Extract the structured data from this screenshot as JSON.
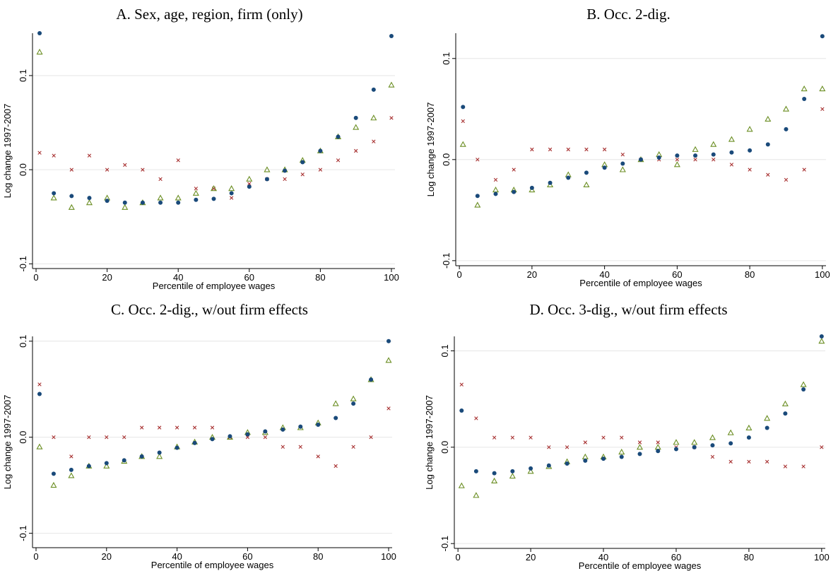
{
  "colors": {
    "dot": "#1a4a7a",
    "triangle": "#6b8e23",
    "cross": "#a83232",
    "grid": "#e6e6e6",
    "axis": "#000000"
  },
  "panels": [
    {
      "id": "A",
      "title": "A. Sex, age, region, firm (only)",
      "xlabel": "Percentile of employee wages",
      "ylabel": "Log change 1997-2007",
      "yticks": [
        {
          "v": -0.1,
          "label": "-0.1"
        },
        {
          "v": 0.0,
          "label": "0.0"
        },
        {
          "v": 0.1,
          "label": "0.1"
        }
      ],
      "xticks": [
        0,
        20,
        40,
        60,
        80,
        100
      ]
    },
    {
      "id": "B",
      "title": "B. Occ. 2-dig.",
      "xlabel": "Percentile of employee wages",
      "ylabel": "Log change 1997-2007",
      "yticks": [
        {
          "v": -0.1,
          "label": "-0.1"
        },
        {
          "v": 0.0,
          "label": "0.0"
        },
        {
          "v": 0.1,
          "label": "0.1"
        }
      ],
      "xticks": [
        0,
        20,
        40,
        60,
        80,
        100
      ]
    },
    {
      "id": "C",
      "title": "C. Occ. 2-dig., w/out firm effects",
      "xlabel": "Percentile of employee wages",
      "ylabel": "Log change 1997-2007",
      "yticks": [
        {
          "v": -0.1,
          "label": "-0.1"
        },
        {
          "v": 0.0,
          "label": "0.0"
        },
        {
          "v": 0.1,
          "label": "0.1"
        }
      ],
      "xticks": [
        0,
        20,
        40,
        60,
        80,
        100
      ]
    },
    {
      "id": "D",
      "title": "D. Occ. 3-dig., w/out firm effects",
      "xlabel": "Percentile of employee wages",
      "ylabel": "Log change 1997-2007",
      "yticks": [
        {
          "v": -0.1,
          "label": "-0.1"
        },
        {
          "v": 0.0,
          "label": "0.0"
        },
        {
          "v": 0.1,
          "label": "0.1"
        }
      ],
      "xticks": [
        0,
        20,
        40,
        60,
        80,
        100
      ]
    }
  ],
  "chart_data": [
    {
      "type": "scatter",
      "title": "A. Sex, age, region, firm (only)",
      "xlabel": "Percentile of employee wages",
      "ylabel": "Log change 1997-2007",
      "xlim": [
        -1,
        101
      ],
      "ylim": [
        -0.105,
        0.145
      ],
      "grid": true,
      "x": [
        1,
        5,
        10,
        15,
        20,
        25,
        30,
        35,
        40,
        45,
        50,
        55,
        60,
        65,
        70,
        75,
        80,
        85,
        90,
        95,
        100
      ],
      "series": [
        {
          "marker": "dot",
          "values": [
            0.145,
            -0.025,
            -0.028,
            -0.03,
            -0.033,
            -0.035,
            -0.035,
            -0.035,
            -0.035,
            -0.032,
            -0.031,
            -0.025,
            -0.018,
            -0.01,
            -0.001,
            0.008,
            0.02,
            0.035,
            0.055,
            0.085,
            0.142
          ]
        },
        {
          "marker": "triangle",
          "values": [
            0.125,
            -0.03,
            -0.04,
            -0.035,
            -0.03,
            -0.04,
            -0.035,
            -0.03,
            -0.03,
            -0.025,
            -0.02,
            -0.02,
            -0.01,
            0.0,
            0.0,
            0.01,
            0.02,
            0.035,
            0.045,
            0.055,
            0.09
          ]
        },
        {
          "marker": "cross",
          "values": [
            0.018,
            0.015,
            0.0,
            0.015,
            0.0,
            0.005,
            0.0,
            -0.01,
            0.01,
            -0.02,
            -0.02,
            -0.03,
            -0.015,
            -0.01,
            -0.01,
            -0.005,
            0.0,
            0.01,
            0.02,
            0.03,
            0.055
          ]
        }
      ]
    },
    {
      "type": "scatter",
      "title": "B. Occ. 2-dig.",
      "xlabel": "Percentile of employee wages",
      "ylabel": "Log change 1997-2007",
      "xlim": [
        -1,
        101
      ],
      "ylim": [
        -0.105,
        0.125
      ],
      "grid": true,
      "x": [
        1,
        5,
        10,
        15,
        20,
        25,
        30,
        35,
        40,
        45,
        50,
        55,
        60,
        65,
        70,
        75,
        80,
        85,
        90,
        95,
        100
      ],
      "series": [
        {
          "marker": "dot",
          "values": [
            0.052,
            -0.036,
            -0.034,
            -0.032,
            -0.028,
            -0.023,
            -0.018,
            -0.013,
            -0.008,
            -0.004,
            0.0,
            0.002,
            0.004,
            0.004,
            0.005,
            0.007,
            0.009,
            0.015,
            0.03,
            0.06,
            0.122
          ]
        },
        {
          "marker": "triangle",
          "values": [
            0.015,
            -0.045,
            -0.03,
            -0.03,
            -0.03,
            -0.025,
            -0.015,
            -0.025,
            -0.005,
            -0.01,
            0.0,
            0.005,
            -0.005,
            0.01,
            0.015,
            0.02,
            0.03,
            0.04,
            0.05,
            0.07,
            0.07
          ]
        },
        {
          "marker": "cross",
          "values": [
            0.038,
            0.0,
            -0.02,
            -0.01,
            0.01,
            0.01,
            0.01,
            0.01,
            0.01,
            0.005,
            0.0,
            0.0,
            0.0,
            0.0,
            0.0,
            -0.005,
            -0.01,
            -0.015,
            -0.02,
            -0.01,
            0.05
          ]
        }
      ]
    },
    {
      "type": "scatter",
      "title": "C. Occ. 2-dig., w/out firm effects",
      "xlabel": "Percentile of employee wages",
      "ylabel": "Log change 1997-2007",
      "xlim": [
        -1,
        101
      ],
      "ylim": [
        -0.115,
        0.105
      ],
      "grid": true,
      "x": [
        1,
        5,
        10,
        15,
        20,
        25,
        30,
        35,
        40,
        45,
        50,
        55,
        60,
        65,
        70,
        75,
        80,
        85,
        90,
        95,
        100
      ],
      "series": [
        {
          "marker": "dot",
          "values": [
            0.045,
            -0.038,
            -0.034,
            -0.03,
            -0.027,
            -0.024,
            -0.02,
            -0.016,
            -0.011,
            -0.006,
            -0.002,
            0.001,
            0.003,
            0.006,
            0.008,
            0.011,
            0.013,
            0.02,
            0.035,
            0.06,
            0.1
          ]
        },
        {
          "marker": "triangle",
          "values": [
            -0.01,
            -0.05,
            -0.04,
            -0.03,
            -0.03,
            -0.025,
            -0.02,
            -0.02,
            -0.01,
            -0.005,
            0.0,
            0.0,
            0.005,
            0.005,
            0.01,
            0.01,
            0.015,
            0.035,
            0.04,
            0.06,
            0.08
          ]
        },
        {
          "marker": "cross",
          "values": [
            0.055,
            0.0,
            -0.02,
            0.0,
            0.0,
            0.0,
            0.01,
            0.01,
            0.01,
            0.01,
            0.01,
            0.0,
            0.0,
            0.0,
            -0.01,
            -0.01,
            -0.02,
            -0.03,
            -0.01,
            0.0,
            0.03
          ]
        }
      ]
    },
    {
      "type": "scatter",
      "title": "D. Occ. 3-dig., w/out firm effects",
      "xlabel": "Percentile of employee wages",
      "ylabel": "Log change 1997-2007",
      "xlim": [
        -1,
        101
      ],
      "ylim": [
        -0.105,
        0.115
      ],
      "grid": true,
      "x": [
        1,
        5,
        10,
        15,
        20,
        25,
        30,
        35,
        40,
        45,
        50,
        55,
        60,
        65,
        70,
        75,
        80,
        85,
        90,
        95,
        100
      ],
      "series": [
        {
          "marker": "dot",
          "values": [
            0.038,
            -0.025,
            -0.027,
            -0.025,
            -0.022,
            -0.019,
            -0.017,
            -0.014,
            -0.012,
            -0.01,
            -0.007,
            -0.004,
            -0.002,
            0.0,
            0.002,
            0.004,
            0.01,
            0.02,
            0.035,
            0.06,
            0.115
          ]
        },
        {
          "marker": "triangle",
          "values": [
            -0.04,
            -0.05,
            -0.035,
            -0.03,
            -0.025,
            -0.02,
            -0.015,
            -0.01,
            -0.01,
            -0.005,
            0.0,
            0.0,
            0.005,
            0.005,
            0.01,
            0.015,
            0.02,
            0.03,
            0.045,
            0.065,
            0.11
          ]
        },
        {
          "marker": "cross",
          "values": [
            0.065,
            0.03,
            0.01,
            0.01,
            0.01,
            0.0,
            0.0,
            0.005,
            0.01,
            0.01,
            0.005,
            0.005,
            0.0,
            0.0,
            -0.01,
            -0.015,
            -0.015,
            -0.015,
            -0.02,
            -0.02,
            0.0
          ]
        }
      ]
    }
  ]
}
